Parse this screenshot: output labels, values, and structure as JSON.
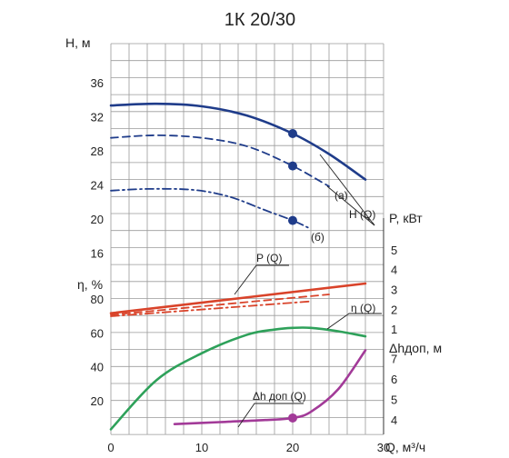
{
  "chart_data": {
    "type": "line",
    "title": "1К 20/30",
    "x_axis": {
      "label": "Q, м³/ч",
      "ticks": [
        "0",
        "10",
        "20",
        "30"
      ],
      "range": [
        0,
        30
      ]
    },
    "head_axis": {
      "label": "H, м",
      "ticks": [
        "16",
        "20",
        "24",
        "28",
        "32",
        "36"
      ],
      "range": [
        14,
        38
      ]
    },
    "eta_axis": {
      "label": "η, %",
      "ticks": [
        "20",
        "40",
        "60",
        "80"
      ],
      "range": [
        0,
        100
      ]
    },
    "power_axis": {
      "label": "P, кВт",
      "ticks": [
        "1",
        "2",
        "3",
        "4",
        "5"
      ],
      "range": [
        0,
        5.5
      ]
    },
    "npsh_axis": {
      "label": "Δhдоп, м",
      "ticks": [
        "4",
        "5",
        "6",
        "7"
      ],
      "range": [
        3.3,
        8
      ]
    },
    "grid": true,
    "colors": {
      "head": "#1f3c8a",
      "power": "#d9432a",
      "efficiency": "#2ea15a",
      "npsh": "#a23a98",
      "axis": "#333333"
    },
    "annotations": {
      "head": "H (Q)",
      "power": "P (Q)",
      "efficiency": "η (Q)",
      "npsh": "Δh доп (Q)",
      "trim_a": "(а)",
      "trim_b": "(б)"
    },
    "series": [
      {
        "name": "H (Q)",
        "axis": "head",
        "style": "solid",
        "x": [
          0,
          5,
          10,
          15,
          20,
          24,
          28
        ],
        "values": [
          33.3,
          33.5,
          33.2,
          32.1,
          30.0,
          27.6,
          24.6
        ],
        "marker_x": 20
      },
      {
        "name": "(а)",
        "axis": "head",
        "style": "dashed",
        "x": [
          0,
          5,
          10,
          15,
          20,
          24
        ],
        "values": [
          29.5,
          29.8,
          29.5,
          28.5,
          26.2,
          23.8
        ],
        "marker_x": 20
      },
      {
        "name": "(б)",
        "axis": "head",
        "style": "dashdot",
        "x": [
          0,
          4,
          9,
          13,
          17,
          20,
          22
        ],
        "values": [
          23.3,
          23.5,
          23.4,
          22.6,
          21.0,
          19.8,
          18.8
        ],
        "marker_x": 20
      },
      {
        "name": "P (Q)",
        "axis": "power",
        "style": "solid",
        "x": [
          0,
          28
        ],
        "values": [
          1.8,
          3.3
        ]
      },
      {
        "axis": "power",
        "style": "dashed",
        "x": [
          0,
          24
        ],
        "values": [
          1.72,
          2.75
        ]
      },
      {
        "axis": "power",
        "style": "dashdot",
        "x": [
          0,
          22
        ],
        "values": [
          1.65,
          2.4
        ]
      },
      {
        "name": "η (Q)",
        "axis": "efficiency",
        "style": "solid",
        "x": [
          0,
          5,
          10,
          15,
          18,
          20,
          22,
          25,
          28
        ],
        "values": [
          3,
          32,
          48,
          59,
          62,
          63,
          63,
          61,
          58
        ]
      },
      {
        "name": "Δh доп (Q)",
        "axis": "npsh",
        "style": "solid",
        "x": [
          7,
          12,
          17,
          20,
          22,
          25,
          28
        ],
        "values": [
          3.8,
          3.9,
          4.0,
          4.1,
          4.4,
          5.5,
          7.4
        ],
        "marker_x": 20
      }
    ]
  }
}
